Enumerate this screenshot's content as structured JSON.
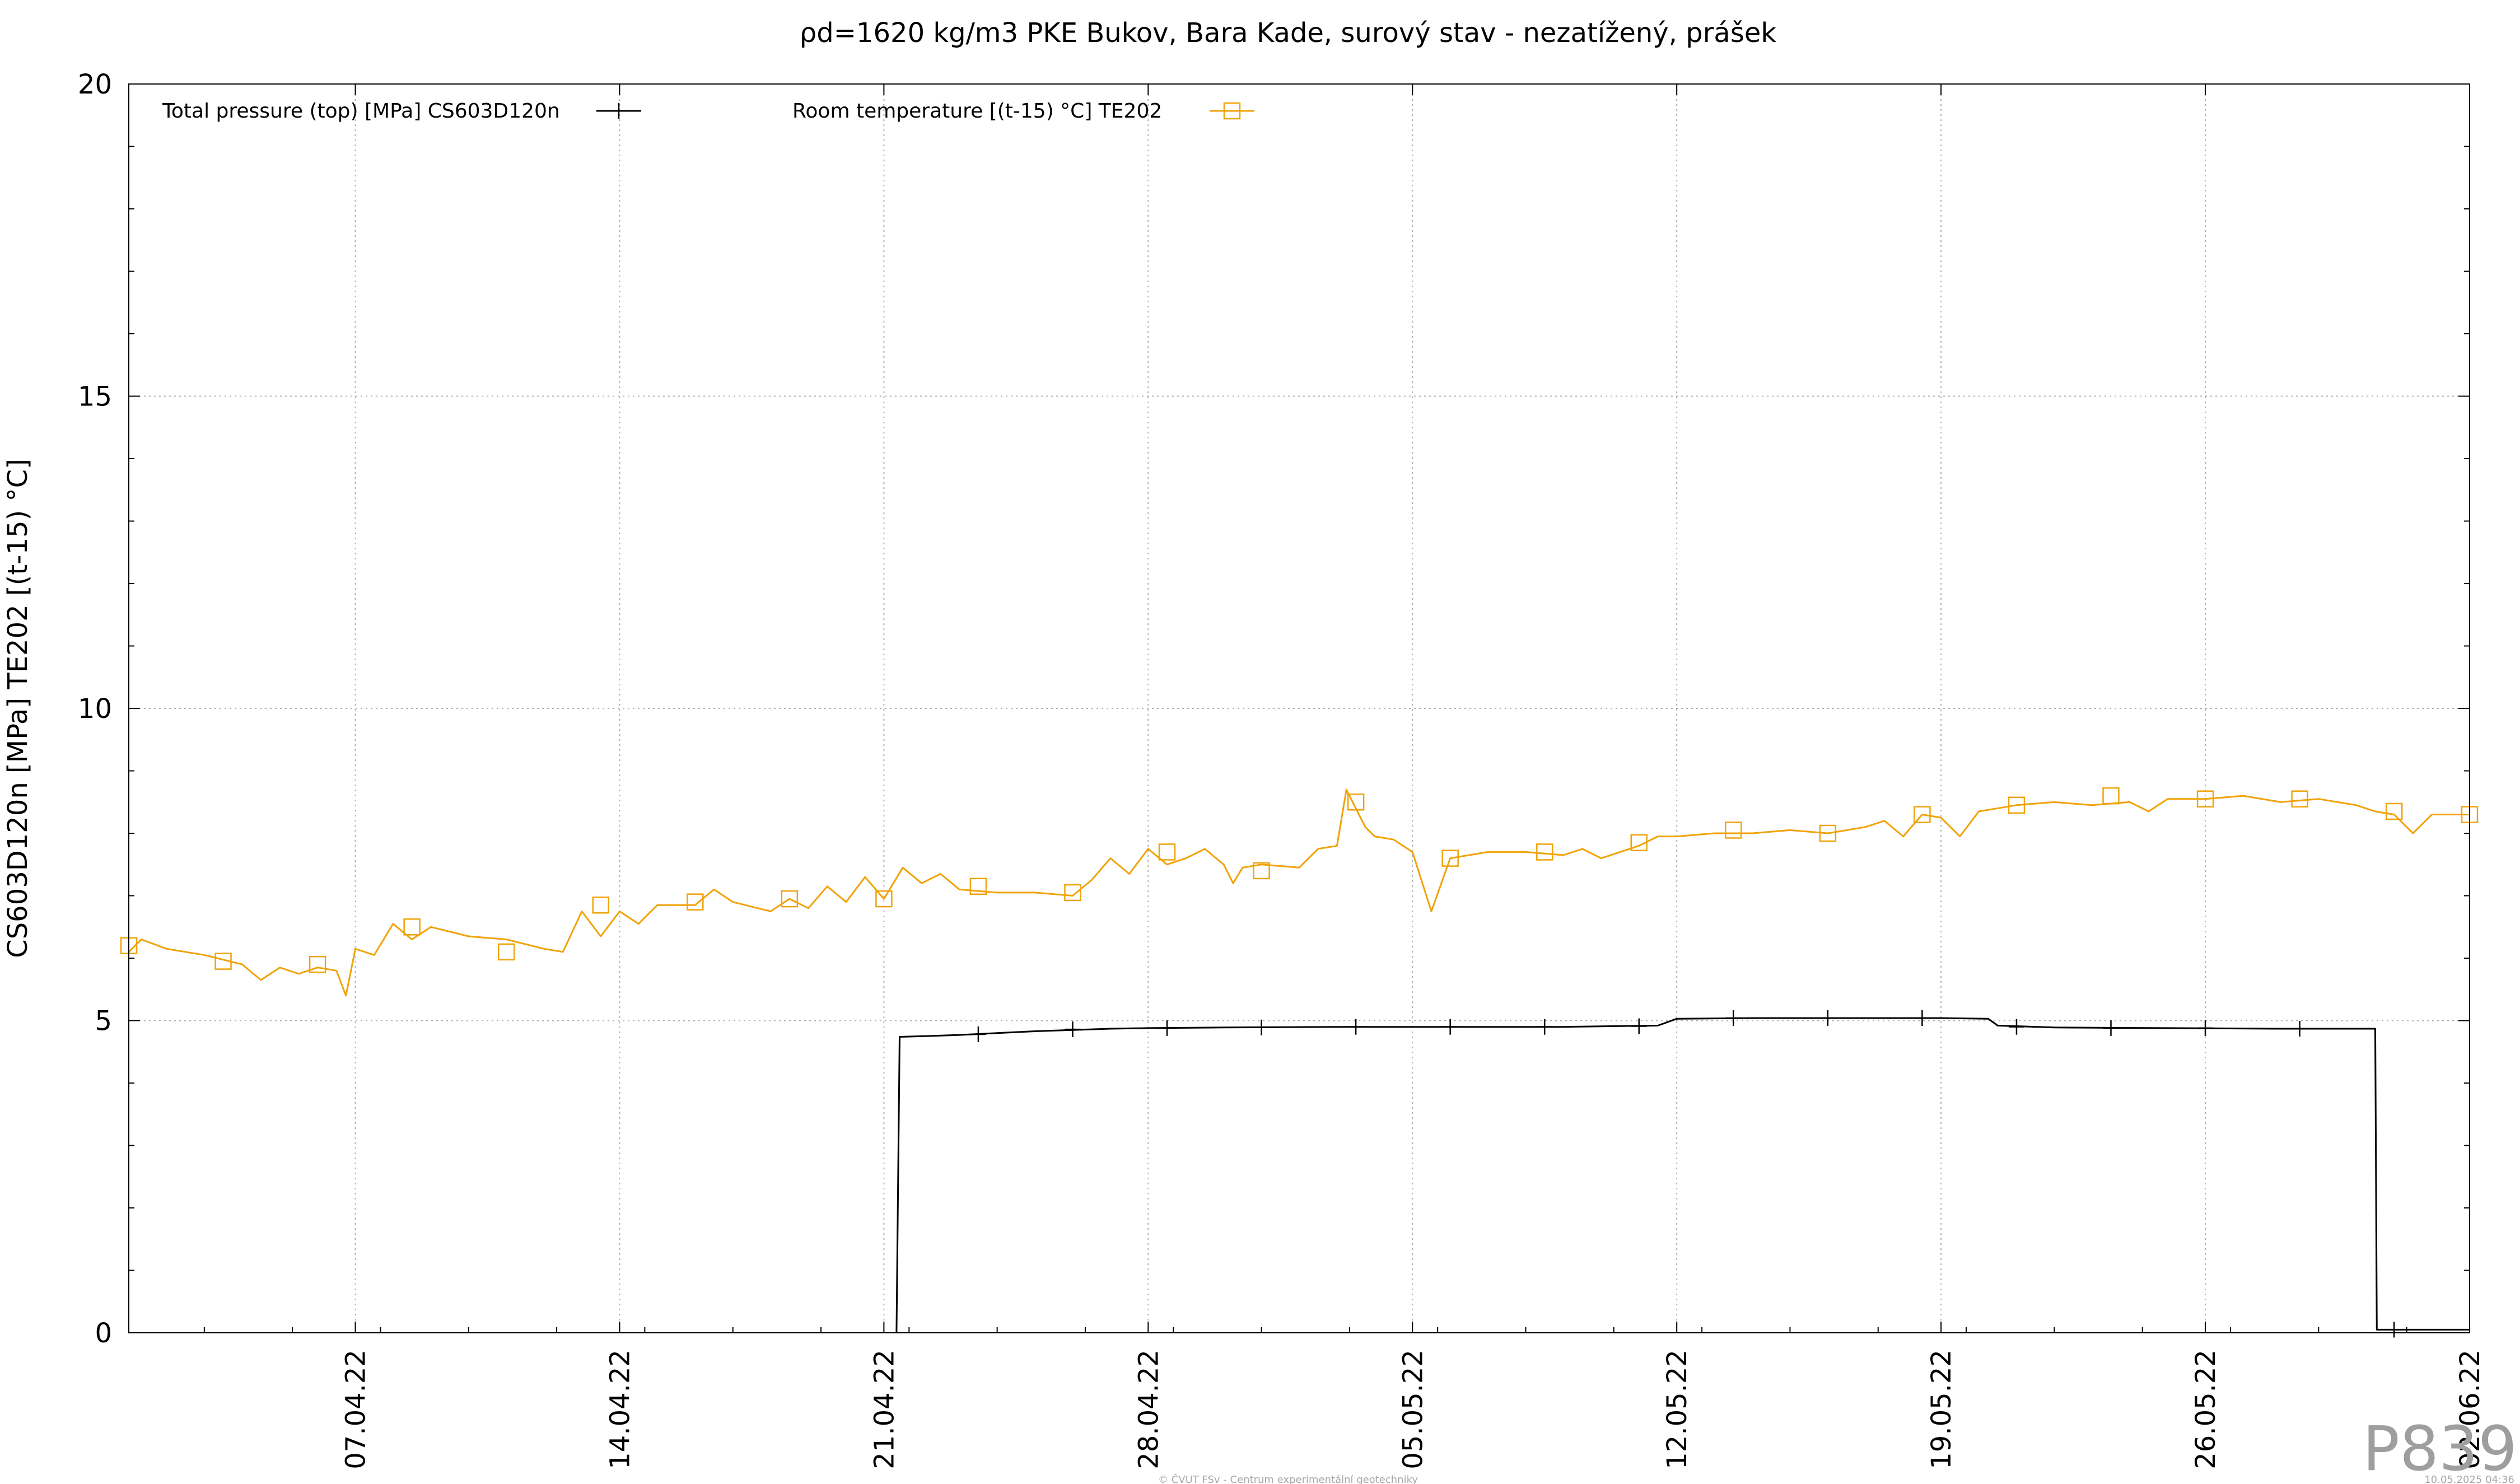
{
  "chart_data": {
    "type": "line",
    "title": "ρd=1620 kg/m3 PKE Bukov, Bara Kade, surový stav - nezatížený, prášek",
    "ylabel": "CS603D120n [MPa] TE202 [(t-15) °C]",
    "xlabel": "",
    "ylim": [
      0,
      20
    ],
    "yticks": [
      0,
      5,
      10,
      15,
      20
    ],
    "xlim": [
      "2022-04-01",
      "2022-06-02"
    ],
    "xticks": [
      "07.04.22",
      "14.04.22",
      "21.04.22",
      "28.04.22",
      "05.05.22",
      "12.05.22",
      "19.05.22",
      "26.05.22",
      "02.06.22"
    ],
    "grid": true,
    "legend_position": "top",
    "series": [
      {
        "name": "Total pressure (top) [MPa] CS603D120n",
        "color": "#000000",
        "marker": "plus",
        "points": [
          [
            "2022-04-21 08:00",
            0
          ],
          [
            "2022-04-21 10:00",
            4.74
          ],
          [
            "2022-04-22",
            4.75
          ],
          [
            "2022-04-23",
            4.77
          ],
          [
            "2022-04-24",
            4.8
          ],
          [
            "2022-04-25",
            4.83
          ],
          [
            "2022-04-26",
            4.85
          ],
          [
            "2022-04-27",
            4.87
          ],
          [
            "2022-04-28",
            4.88
          ],
          [
            "2022-04-30",
            4.89
          ],
          [
            "2022-05-03",
            4.9
          ],
          [
            "2022-05-06",
            4.9
          ],
          [
            "2022-05-09",
            4.9
          ],
          [
            "2022-05-11 12:00",
            4.92
          ],
          [
            "2022-05-12",
            5.03
          ],
          [
            "2022-05-14",
            5.04
          ],
          [
            "2022-05-17",
            5.04
          ],
          [
            "2022-05-19",
            5.04
          ],
          [
            "2022-05-20 06:00",
            5.03
          ],
          [
            "2022-05-20 12:00",
            4.92
          ],
          [
            "2022-05-22",
            4.89
          ],
          [
            "2022-05-25",
            4.88
          ],
          [
            "2022-05-28",
            4.87
          ],
          [
            "2022-05-30",
            4.87
          ],
          [
            "2022-05-30 12:00",
            4.87
          ],
          [
            "2022-05-30 13:00",
            0.05
          ],
          [
            "2022-06-02",
            0.05
          ]
        ],
        "marker_points": [
          [
            "2022-04-23 12:00",
            4.78
          ],
          [
            "2022-04-26",
            4.86
          ],
          [
            "2022-04-28 12:00",
            4.88
          ],
          [
            "2022-05-01",
            4.89
          ],
          [
            "2022-05-03 12:00",
            4.9
          ],
          [
            "2022-05-06",
            4.9
          ],
          [
            "2022-05-08 12:00",
            4.9
          ],
          [
            "2022-05-11",
            4.91
          ],
          [
            "2022-05-13 12:00",
            5.04
          ],
          [
            "2022-05-16",
            5.04
          ],
          [
            "2022-05-18 12:00",
            5.04
          ],
          [
            "2022-05-21",
            4.9
          ],
          [
            "2022-05-23 12:00",
            4.88
          ],
          [
            "2022-05-26",
            4.88
          ],
          [
            "2022-05-28 12:00",
            4.87
          ],
          [
            "2022-05-31",
            0.05
          ]
        ]
      },
      {
        "name": "Room temperature [(t-15) °C] TE202",
        "color": "#f0a30a",
        "marker": "square",
        "points": [
          [
            "2022-04-01",
            6.1
          ],
          [
            "2022-04-01 08:00",
            6.3
          ],
          [
            "2022-04-02",
            6.15
          ],
          [
            "2022-04-03",
            6.05
          ],
          [
            "2022-04-04",
            5.9
          ],
          [
            "2022-04-04 12:00",
            5.65
          ],
          [
            "2022-04-05",
            5.85
          ],
          [
            "2022-04-05 12:00",
            5.75
          ],
          [
            "2022-04-06",
            5.85
          ],
          [
            "2022-04-06 12:00",
            5.8
          ],
          [
            "2022-04-06 18:00",
            5.4
          ],
          [
            "2022-04-07",
            6.15
          ],
          [
            "2022-04-07 12:00",
            6.05
          ],
          [
            "2022-04-08",
            6.55
          ],
          [
            "2022-04-08 12:00",
            6.3
          ],
          [
            "2022-04-09",
            6.5
          ],
          [
            "2022-04-10",
            6.35
          ],
          [
            "2022-04-11",
            6.3
          ],
          [
            "2022-04-12",
            6.15
          ],
          [
            "2022-04-12 12:00",
            6.1
          ],
          [
            "2022-04-13",
            6.75
          ],
          [
            "2022-04-13 12:00",
            6.35
          ],
          [
            "2022-04-14",
            6.75
          ],
          [
            "2022-04-14 12:00",
            6.55
          ],
          [
            "2022-04-15",
            6.85
          ],
          [
            "2022-04-16",
            6.85
          ],
          [
            "2022-04-16 12:00",
            7.1
          ],
          [
            "2022-04-17",
            6.9
          ],
          [
            "2022-04-18",
            6.75
          ],
          [
            "2022-04-18 12:00",
            6.95
          ],
          [
            "2022-04-19",
            6.8
          ],
          [
            "2022-04-19 12:00",
            7.15
          ],
          [
            "2022-04-20",
            6.9
          ],
          [
            "2022-04-20 12:00",
            7.3
          ],
          [
            "2022-04-21",
            6.95
          ],
          [
            "2022-04-21 12:00",
            7.45
          ],
          [
            "2022-04-22",
            7.2
          ],
          [
            "2022-04-22 12:00",
            7.35
          ],
          [
            "2022-04-23",
            7.1
          ],
          [
            "2022-04-24",
            7.05
          ],
          [
            "2022-04-25",
            7.05
          ],
          [
            "2022-04-26",
            7.0
          ],
          [
            "2022-04-26 12:00",
            7.25
          ],
          [
            "2022-04-27",
            7.6
          ],
          [
            "2022-04-27 12:00",
            7.35
          ],
          [
            "2022-04-28",
            7.75
          ],
          [
            "2022-04-28 12:00",
            7.5
          ],
          [
            "2022-04-29",
            7.6
          ],
          [
            "2022-04-29 12:00",
            7.75
          ],
          [
            "2022-04-30",
            7.5
          ],
          [
            "2022-04-30 06:00",
            7.2
          ],
          [
            "2022-04-30 12:00",
            7.45
          ],
          [
            "2022-05-01",
            7.5
          ],
          [
            "2022-05-02",
            7.45
          ],
          [
            "2022-05-02 12:00",
            7.75
          ],
          [
            "2022-05-03",
            7.8
          ],
          [
            "2022-05-03 06:00",
            8.7
          ],
          [
            "2022-05-03 18:00",
            8.1
          ],
          [
            "2022-05-04",
            7.95
          ],
          [
            "2022-05-04 12:00",
            7.9
          ],
          [
            "2022-05-05",
            7.7
          ],
          [
            "2022-05-05 12:00",
            6.75
          ],
          [
            "2022-05-06",
            7.6
          ],
          [
            "2022-05-07",
            7.7
          ],
          [
            "2022-05-08",
            7.7
          ],
          [
            "2022-05-09",
            7.65
          ],
          [
            "2022-05-09 12:00",
            7.75
          ],
          [
            "2022-05-10",
            7.6
          ],
          [
            "2022-05-11",
            7.8
          ],
          [
            "2022-05-11 12:00",
            7.95
          ],
          [
            "2022-05-12",
            7.95
          ],
          [
            "2022-05-13",
            8.0
          ],
          [
            "2022-05-14",
            8.0
          ],
          [
            "2022-05-15",
            8.05
          ],
          [
            "2022-05-16",
            8.0
          ],
          [
            "2022-05-17",
            8.1
          ],
          [
            "2022-05-17 12:00",
            8.2
          ],
          [
            "2022-05-18",
            7.95
          ],
          [
            "2022-05-18 12:00",
            8.3
          ],
          [
            "2022-05-19",
            8.25
          ],
          [
            "2022-05-19 12:00",
            7.95
          ],
          [
            "2022-05-20",
            8.35
          ],
          [
            "2022-05-21",
            8.45
          ],
          [
            "2022-05-22",
            8.5
          ],
          [
            "2022-05-23",
            8.45
          ],
          [
            "2022-05-24",
            8.5
          ],
          [
            "2022-05-24 12:00",
            8.35
          ],
          [
            "2022-05-25",
            8.55
          ],
          [
            "2022-05-26",
            8.55
          ],
          [
            "2022-05-27",
            8.6
          ],
          [
            "2022-05-28",
            8.5
          ],
          [
            "2022-05-29",
            8.55
          ],
          [
            "2022-05-30",
            8.45
          ],
          [
            "2022-05-30 12:00",
            8.35
          ],
          [
            "2022-05-31",
            8.3
          ],
          [
            "2022-05-31 12:00",
            8.0
          ],
          [
            "2022-06-01",
            8.3
          ],
          [
            "2022-06-02",
            8.3
          ]
        ],
        "marker_points": [
          [
            "2022-04-01",
            6.2
          ],
          [
            "2022-04-03 12:00",
            5.95
          ],
          [
            "2022-04-06",
            5.9
          ],
          [
            "2022-04-08 12:00",
            6.5
          ],
          [
            "2022-04-11",
            6.1
          ],
          [
            "2022-04-13 12:00",
            6.85
          ],
          [
            "2022-04-16",
            6.9
          ],
          [
            "2022-04-18 12:00",
            6.95
          ],
          [
            "2022-04-21",
            6.95
          ],
          [
            "2022-04-23 12:00",
            7.15
          ],
          [
            "2022-04-26",
            7.05
          ],
          [
            "2022-04-28 12:00",
            7.7
          ],
          [
            "2022-05-01",
            7.4
          ],
          [
            "2022-05-03 12:00",
            8.5
          ],
          [
            "2022-05-06",
            7.6
          ],
          [
            "2022-05-08 12:00",
            7.7
          ],
          [
            "2022-05-11",
            7.85
          ],
          [
            "2022-05-13 12:00",
            8.05
          ],
          [
            "2022-05-16",
            8.0
          ],
          [
            "2022-05-18 12:00",
            8.3
          ],
          [
            "2022-05-21",
            8.45
          ],
          [
            "2022-05-23 12:00",
            8.6
          ],
          [
            "2022-05-26",
            8.55
          ],
          [
            "2022-05-28 12:00",
            8.55
          ],
          [
            "2022-05-31",
            8.35
          ],
          [
            "2022-06-02",
            8.3
          ]
        ]
      }
    ]
  },
  "watermark": "P839",
  "footer_left": "© ČVUT FSv - Centrum experimentální geotechniky",
  "footer_right": "10.05.2025 04:36"
}
